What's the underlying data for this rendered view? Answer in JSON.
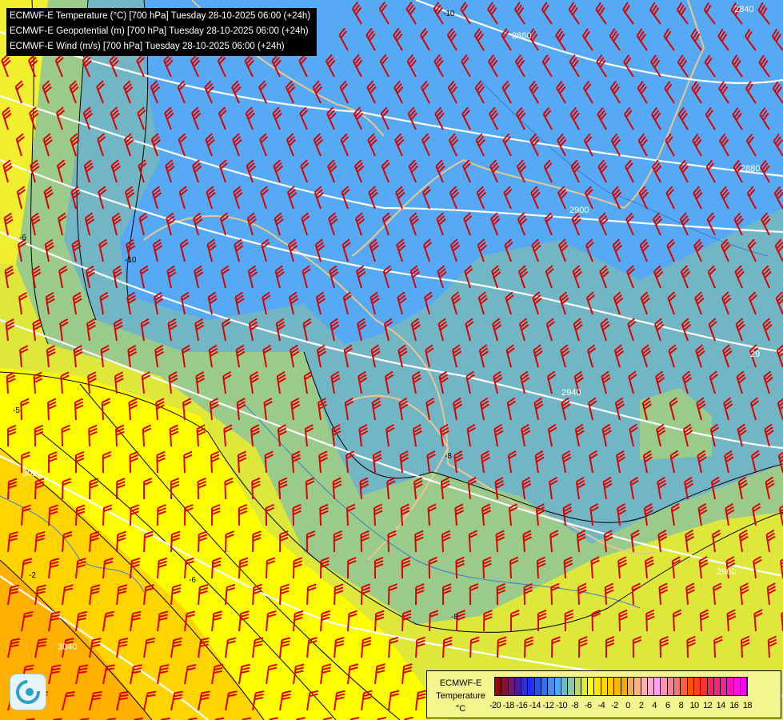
{
  "header": {
    "lines": [
      "ECMWF-E Temperature (°C) [700 hPa] Tuesday 28-10-2025 06:00 (+24h)",
      "ECMWF-E Geopotential (m) [700 hPa] Tuesday 28-10-2025 06:00 (+24h)",
      "ECMWF-E Wind (m/s) [700 hPa] Tuesday 28-10-2025 06:00 (+24h)"
    ]
  },
  "geopotential_labels": [
    "2840",
    "2860",
    "2880",
    "2900",
    "29",
    "2940",
    "2960",
    "3020",
    "3040"
  ],
  "temperature_labels": [
    "-10",
    "-10",
    "-8",
    "-8",
    "-6",
    "-6",
    "-5",
    "-2"
  ],
  "legend": {
    "title_lines": [
      "ECMWF-E",
      "Temperature",
      "°C"
    ],
    "ticks": [
      "-20",
      "-18",
      "-16",
      "-14",
      "-12",
      "-10",
      "-8",
      "-6",
      "-4",
      "-2",
      "0",
      "2",
      "4",
      "6",
      "8",
      "10",
      "12",
      "14",
      "16",
      "18"
    ],
    "colors": [
      "#a00000",
      "#8a1030",
      "#6a1a70",
      "#4a1aa0",
      "#3030d0",
      "#1a30ff",
      "#2050ff",
      "#3070ff",
      "#4090f8",
      "#50a8ff",
      "#70b8c8",
      "#8cc8a0",
      "#b8dc60",
      "#e0ec30",
      "#ffff00",
      "#ffe800",
      "#ffd800",
      "#ffc800",
      "#ffb800",
      "#ffa800",
      "#ffa850",
      "#ffb080",
      "#ffb0b0",
      "#ffa8d0",
      "#ffa0ff",
      "#ff90b0",
      "#ff8090",
      "#ff7070",
      "#ff6040",
      "#ff5000",
      "#ff4020",
      "#ff3030",
      "#ff2060",
      "#ff2080",
      "#ff20a0",
      "#ff10c0",
      "#ff10e0",
      "#ff00ff"
    ]
  },
  "colors": {
    "wind_barb": "#dd0000",
    "geopotential": "#ffffff",
    "isotherm": "#000000",
    "border": "#e8c890",
    "river": "#3a7fd0"
  },
  "logo_icon": "ecmwf-swirl-logo"
}
